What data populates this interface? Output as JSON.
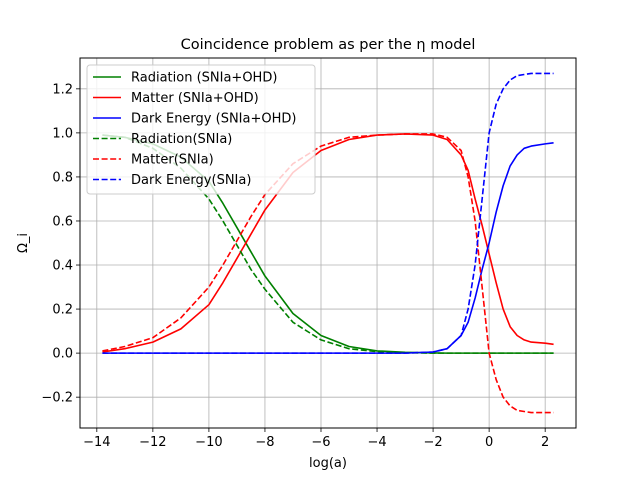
{
  "chart_data": {
    "type": "line",
    "title": "Coincidence problem as per the η model",
    "xlabel": "log(a)",
    "ylabel": "Ω_i",
    "xlim": [
      -14.6,
      3.1
    ],
    "ylim": [
      -0.34,
      1.34
    ],
    "xticks": [
      -14,
      -12,
      -10,
      -8,
      -6,
      -4,
      -2,
      0,
      2
    ],
    "yticks": [
      -0.2,
      0.0,
      0.2,
      0.4,
      0.6,
      0.8,
      1.0,
      1.2
    ],
    "grid": true,
    "legend_position": "top-left",
    "x": [
      -13.8,
      -13.0,
      -12.0,
      -11.0,
      -10.0,
      -9.5,
      -9.0,
      -8.5,
      -8.0,
      -7.0,
      -6.0,
      -5.0,
      -4.0,
      -3.0,
      -2.0,
      -1.5,
      -1.0,
      -0.75,
      -0.5,
      -0.25,
      0.0,
      0.25,
      0.5,
      0.75,
      1.0,
      1.25,
      1.5,
      2.0,
      2.3
    ],
    "series": [
      {
        "name": "Radiation (SNIa+OHD)",
        "color": "#008000",
        "dash": "solid",
        "values": [
          0.99,
          0.98,
          0.95,
          0.89,
          0.78,
          0.68,
          0.57,
          0.46,
          0.35,
          0.18,
          0.08,
          0.03,
          0.01,
          0.004,
          0.001,
          0.0,
          0.0,
          0.0,
          0.0,
          0.0,
          0.0,
          0.0,
          0.0,
          0.0,
          0.0,
          0.0,
          0.0,
          0.0,
          0.0
        ]
      },
      {
        "name": "Matter (SNIa+OHD)",
        "color": "#ff0000",
        "dash": "solid",
        "values": [
          0.005,
          0.02,
          0.05,
          0.11,
          0.22,
          0.32,
          0.43,
          0.54,
          0.65,
          0.82,
          0.92,
          0.97,
          0.99,
          0.995,
          0.99,
          0.97,
          0.9,
          0.83,
          0.7,
          0.58,
          0.45,
          0.32,
          0.2,
          0.12,
          0.08,
          0.06,
          0.05,
          0.045,
          0.04
        ]
      },
      {
        "name": "Dark Energy (SNIa+OHD)",
        "color": "#0000ff",
        "dash": "solid",
        "values": [
          0.0,
          0.0,
          0.0,
          0.0,
          0.0,
          0.0,
          0.0,
          0.0,
          0.0,
          0.0,
          0.0,
          0.0,
          0.0,
          0.0,
          0.005,
          0.02,
          0.08,
          0.14,
          0.25,
          0.38,
          0.5,
          0.64,
          0.76,
          0.85,
          0.9,
          0.93,
          0.94,
          0.95,
          0.955
        ]
      },
      {
        "name": "Radiation(SNIa)",
        "color": "#008000",
        "dash": "dashed",
        "values": [
          0.99,
          0.98,
          0.93,
          0.84,
          0.7,
          0.6,
          0.49,
          0.38,
          0.29,
          0.14,
          0.06,
          0.02,
          0.007,
          0.002,
          0.0,
          0.0,
          0.0,
          0.0,
          0.0,
          0.0,
          0.0,
          0.0,
          0.0,
          0.0,
          0.0,
          0.0,
          0.0,
          0.0,
          0.0
        ]
      },
      {
        "name": "Matter(SNIa)",
        "color": "#ff0000",
        "dash": "dashed",
        "values": [
          0.01,
          0.03,
          0.07,
          0.16,
          0.3,
          0.4,
          0.51,
          0.62,
          0.72,
          0.86,
          0.94,
          0.98,
          0.99,
          0.995,
          0.995,
          0.98,
          0.92,
          0.8,
          0.6,
          0.3,
          0.0,
          -0.12,
          -0.2,
          -0.24,
          -0.26,
          -0.265,
          -0.27,
          -0.27,
          -0.27
        ]
      },
      {
        "name": "Dark Energy(SNIa)",
        "color": "#0000ff",
        "dash": "dashed",
        "values": [
          0.0,
          0.0,
          0.0,
          0.0,
          0.0,
          0.0,
          0.0,
          0.0,
          0.0,
          0.0,
          0.0,
          0.0,
          0.0,
          0.0,
          0.005,
          0.02,
          0.08,
          0.2,
          0.4,
          0.7,
          1.0,
          1.13,
          1.2,
          1.24,
          1.26,
          1.265,
          1.27,
          1.27,
          1.27
        ]
      }
    ]
  }
}
